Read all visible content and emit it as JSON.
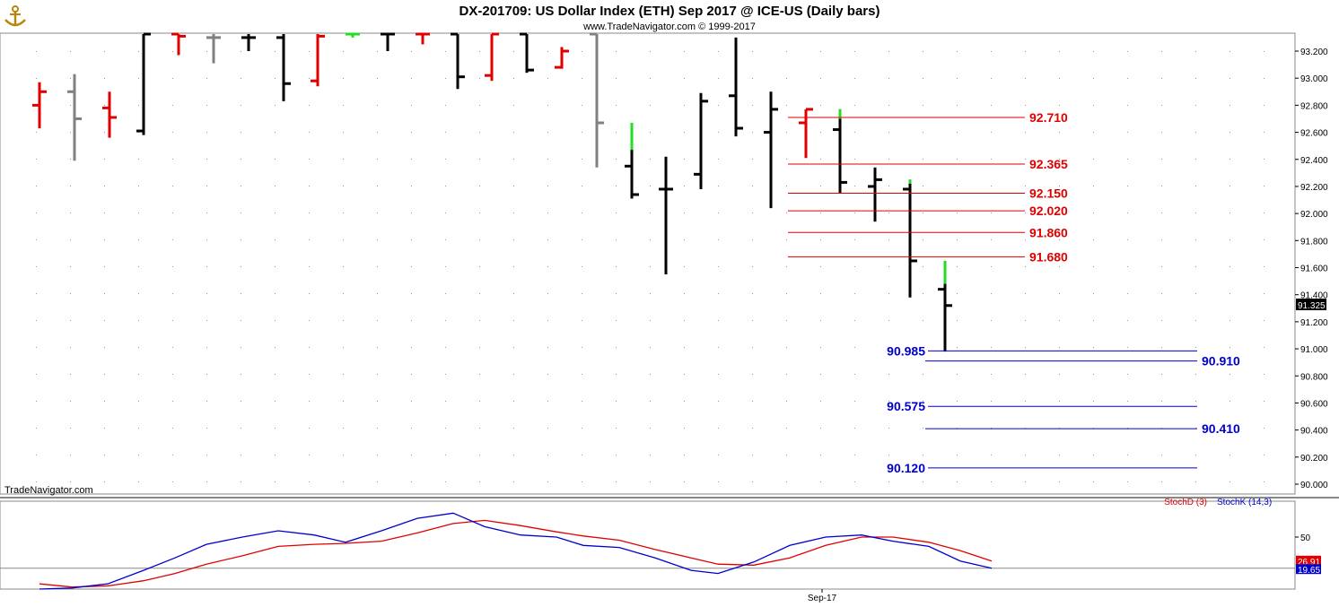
{
  "header": {
    "title": "DX-201709:  US Dollar Index (ETH) Sep 2017 @ ICE-US  (Daily bars)",
    "subtitle": "www.TradeNavigator.com © 1999-2017"
  },
  "watermark": "TradeNavigator.com",
  "icon": "anchor-logo-icon",
  "colors": {
    "up": "#e00000",
    "down": "#000000",
    "neutral": "#808080",
    "green": "#22dd22",
    "level_red": "#e00000",
    "level_blue": "#0000cc",
    "stoch_d": "#e00000",
    "stoch_k": "#0000cc"
  },
  "chart_data": [
    {
      "type": "ohlc",
      "title": "DX-201709:  US Dollar Index (ETH) Sep 2017 @ ICE-US  (Daily bars)",
      "ylim": [
        89.93,
        93.33
      ],
      "yticks": [
        "93.200",
        "93.000",
        "92.800",
        "92.600",
        "92.400",
        "92.200",
        "92.000",
        "91.800",
        "91.600",
        "91.400",
        "91.200",
        "91.000",
        "90.800",
        "90.600",
        "90.400",
        "90.200",
        "90.000"
      ],
      "last_price": "91.325",
      "bars": [
        {
          "o": 92.8,
          "h": 92.97,
          "l": 92.63,
          "c": 92.9,
          "color": "up"
        },
        {
          "o": 92.9,
          "h": 93.03,
          "l": 92.39,
          "c": 92.7,
          "color": "neutral"
        },
        {
          "o": 92.78,
          "h": 92.9,
          "l": 92.56,
          "c": 92.71,
          "color": "up"
        },
        {
          "o": 92.61,
          "h": 93.33,
          "l": 92.58,
          "c": 93.33,
          "color": "down"
        },
        {
          "o": 93.33,
          "h": 93.33,
          "l": 93.17,
          "c": 93.31,
          "color": "up"
        },
        {
          "o": 93.3,
          "h": 93.33,
          "l": 93.11,
          "c": 93.3,
          "color": "neutral"
        },
        {
          "o": 93.3,
          "h": 93.33,
          "l": 93.2,
          "c": 93.3,
          "color": "down"
        },
        {
          "o": 93.3,
          "h": 93.33,
          "l": 92.83,
          "c": 92.96,
          "color": "down"
        },
        {
          "o": 92.98,
          "h": 93.33,
          "l": 92.94,
          "c": 93.31,
          "color": "up"
        },
        {
          "o": 93.33,
          "h": 93.33,
          "l": 93.3,
          "c": 93.33,
          "color": "green"
        },
        {
          "o": 93.33,
          "h": 93.33,
          "l": 93.2,
          "c": 93.33,
          "color": "down"
        },
        {
          "o": 93.33,
          "h": 93.33,
          "l": 93.25,
          "c": 93.33,
          "color": "up"
        },
        {
          "o": 93.33,
          "h": 93.33,
          "l": 92.92,
          "c": 93.01,
          "color": "down"
        },
        {
          "o": 93.02,
          "h": 93.33,
          "l": 92.98,
          "c": 93.33,
          "color": "up"
        },
        {
          "o": 93.33,
          "h": 93.33,
          "l": 93.04,
          "c": 93.06,
          "color": "down"
        },
        {
          "o": 93.08,
          "h": 93.23,
          "l": 93.07,
          "c": 93.2,
          "color": "up"
        },
        {
          "o": 93.33,
          "h": 93.33,
          "l": 92.34,
          "c": 92.67,
          "color": "neutral"
        },
        {
          "o": 92.35,
          "h": 92.67,
          "l": 92.11,
          "c": 92.14,
          "color": "down"
        },
        {
          "o": 92.18,
          "h": 92.42,
          "l": 91.55,
          "c": 92.18,
          "color": "down"
        },
        {
          "o": 92.29,
          "h": 92.89,
          "l": 92.18,
          "c": 92.83,
          "color": "down"
        },
        {
          "o": 92.87,
          "h": 93.3,
          "l": 92.57,
          "c": 92.63,
          "color": "down"
        },
        {
          "o": 92.6,
          "h": 92.9,
          "l": 92.04,
          "c": 92.77,
          "color": "down"
        },
        {
          "o": 92.67,
          "h": 92.77,
          "l": 92.41,
          "c": 92.77,
          "color": "up"
        },
        {
          "o": 92.62,
          "h": 92.77,
          "l": 92.15,
          "c": 92.23,
          "color": "down"
        },
        {
          "o": 92.2,
          "h": 92.34,
          "l": 91.94,
          "c": 92.25,
          "color": "down"
        },
        {
          "o": 92.18,
          "h": 92.25,
          "l": 91.38,
          "c": 91.65,
          "color": "down"
        },
        {
          "o": 91.44,
          "h": 91.65,
          "l": 90.98,
          "c": 91.32,
          "color": "down"
        }
      ],
      "levels": [
        {
          "value": 92.71,
          "label": "92.710",
          "color": "level_red",
          "x0": 878,
          "x1": 1142,
          "label_side": "right"
        },
        {
          "value": 92.365,
          "label": "92.365",
          "color": "level_red",
          "x0": 878,
          "x1": 1142,
          "label_side": "right"
        },
        {
          "value": 92.15,
          "label": "92.150",
          "color": "level_red",
          "x0": 878,
          "x1": 1142,
          "label_side": "right"
        },
        {
          "value": 92.02,
          "label": "92.020",
          "color": "level_red",
          "x0": 878,
          "x1": 1142,
          "label_side": "right"
        },
        {
          "value": 91.86,
          "label": "91.860",
          "color": "level_red",
          "x0": 878,
          "x1": 1142,
          "label_side": "right"
        },
        {
          "value": 91.68,
          "label": "91.680",
          "color": "level_red",
          "x0": 878,
          "x1": 1142,
          "label_side": "right"
        },
        {
          "value": 90.985,
          "label": "90.985",
          "color": "level_blue",
          "x0": 1034,
          "x1": 1334,
          "label_side": "left"
        },
        {
          "value": 90.91,
          "label": "90.910",
          "color": "level_blue",
          "x0": 1031,
          "x1": 1334,
          "label_side": "right"
        },
        {
          "value": 90.575,
          "label": "90.575",
          "color": "level_blue",
          "x0": 1034,
          "x1": 1334,
          "label_side": "left"
        },
        {
          "value": 90.41,
          "label": "90.410",
          "color": "level_blue",
          "x0": 1031,
          "x1": 1334,
          "label_side": "right"
        },
        {
          "value": 90.12,
          "label": "90.120",
          "color": "level_blue",
          "x0": 1034,
          "x1": 1334,
          "label_side": "left"
        }
      ],
      "xlabel": "Sep-17"
    },
    {
      "type": "line",
      "ylim": [
        0,
        100
      ],
      "yticks": [
        "50"
      ],
      "reference_line": 20,
      "legend": [
        "StochD (3)",
        "StochK (14,3)"
      ],
      "last_values": {
        "d": "26.91",
        "k": "19.65"
      },
      "series": [
        {
          "name": "StochD (3)",
          "color": "stoch_d",
          "x": [
            44,
            80,
            120,
            160,
            195,
            230,
            270,
            310,
            350,
            385,
            425,
            465,
            505,
            540,
            580,
            620,
            650,
            690,
            730,
            770,
            800,
            840,
            880,
            920,
            960,
            995,
            1035,
            1070,
            1105
          ],
          "values": [
            5,
            2,
            3,
            8,
            15,
            24,
            32,
            41,
            43,
            44,
            46,
            54,
            63,
            66,
            61,
            55,
            51,
            47,
            38,
            30,
            24,
            23,
            30,
            42,
            50,
            50,
            45,
            37,
            27
          ]
        },
        {
          "name": "StochK (14,3)",
          "color": "stoch_k",
          "x": [
            44,
            80,
            120,
            160,
            195,
            230,
            270,
            310,
            350,
            385,
            425,
            465,
            505,
            540,
            580,
            620,
            650,
            690,
            730,
            770,
            800,
            840,
            880,
            920,
            960,
            995,
            1035,
            1070,
            1105
          ],
          "values": [
            0,
            1,
            5,
            18,
            30,
            43,
            50,
            56,
            52,
            45,
            56,
            68,
            73,
            60,
            52,
            50,
            42,
            40,
            30,
            18,
            15,
            26,
            42,
            50,
            52,
            46,
            41,
            27,
            20
          ]
        }
      ]
    }
  ]
}
